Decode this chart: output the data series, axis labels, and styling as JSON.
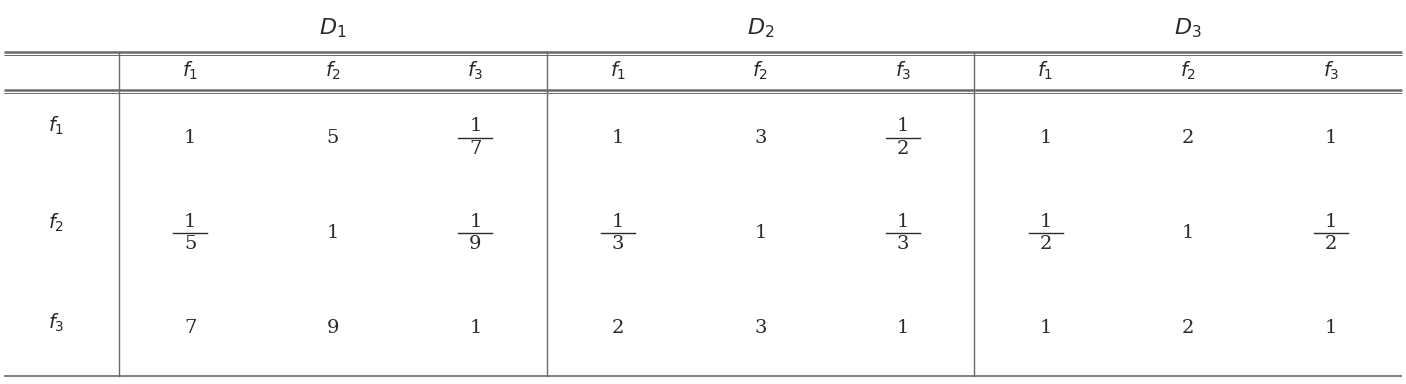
{
  "title_row": [
    "$D_1$",
    "$D_2$",
    "$D_3$"
  ],
  "header_cols": [
    "$f_1$",
    "$f_2$",
    "$f_3$",
    "$f_1$",
    "$f_2$",
    "$f_3$",
    "$f_1$",
    "$f_2$",
    "$f_3$"
  ],
  "row_labels": [
    "$f_1$",
    "$f_2$",
    "$f_3$"
  ],
  "cells": [
    [
      "1",
      "5",
      "1/7",
      "1",
      "3",
      "1/2",
      "1",
      "2",
      "1"
    ],
    [
      "1/5",
      "1",
      "1/9",
      "1/3",
      "1",
      "1/3",
      "1/2",
      "1",
      "1/2"
    ],
    [
      "7",
      "9",
      "1",
      "2",
      "3",
      "1",
      "1",
      "2",
      "1"
    ]
  ],
  "bg_color": "#ffffff",
  "text_color": "#2a2a2a",
  "line_color": "#6a6a6a",
  "font_size": 14,
  "title_font_size": 16
}
